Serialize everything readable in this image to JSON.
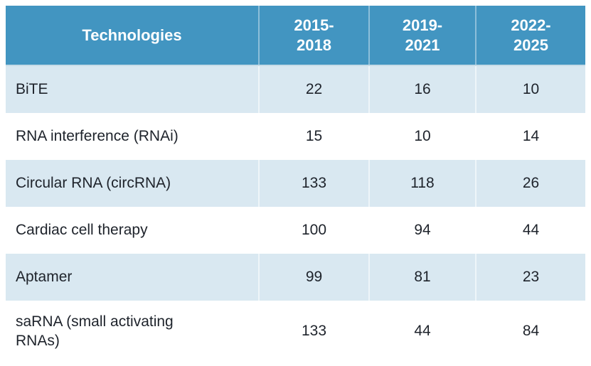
{
  "table": {
    "columns": [
      "Technologies",
      "2015-\n2018",
      "2019-\n2021",
      "2022-\n2025"
    ],
    "rows": [
      {
        "label": "BiTE",
        "values": [
          "22",
          "16",
          "10"
        ]
      },
      {
        "label": "RNA interference (RNAi)",
        "values": [
          "15",
          "10",
          "14"
        ]
      },
      {
        "label": "Circular RNA (circRNA)",
        "values": [
          "133",
          "118",
          "26"
        ]
      },
      {
        "label": "Cardiac cell therapy",
        "values": [
          "100",
          "94",
          "44"
        ]
      },
      {
        "label": "Aptamer",
        "values": [
          "99",
          "81",
          "23"
        ]
      },
      {
        "label": "saRNA (small activating RNAs)",
        "values": [
          "133",
          "44",
          "84"
        ]
      }
    ]
  },
  "colors": {
    "header_background": "#4295C1",
    "zebra_row_background": "#D9E8F1",
    "header_text": "#FFFFFF",
    "body_text": "#1E232B"
  },
  "chart_data": {
    "type": "table",
    "title": "",
    "categories": [
      "BiTE",
      "RNA interference (RNAi)",
      "Circular RNA (circRNA)",
      "Cardiac cell therapy",
      "Aptamer",
      "saRNA (small activating RNAs)"
    ],
    "column_headers": [
      "Technologies",
      "2015-2018",
      "2019-2021",
      "2022-2025"
    ],
    "series": [
      {
        "name": "2015-2018",
        "values": [
          22,
          15,
          133,
          100,
          99,
          133
        ]
      },
      {
        "name": "2019-2021",
        "values": [
          16,
          10,
          118,
          94,
          81,
          44
        ]
      },
      {
        "name": "2022-2025",
        "values": [
          10,
          14,
          26,
          44,
          23,
          84
        ]
      }
    ],
    "layout": {
      "zebra_striping": true,
      "header_position": "top"
    }
  }
}
